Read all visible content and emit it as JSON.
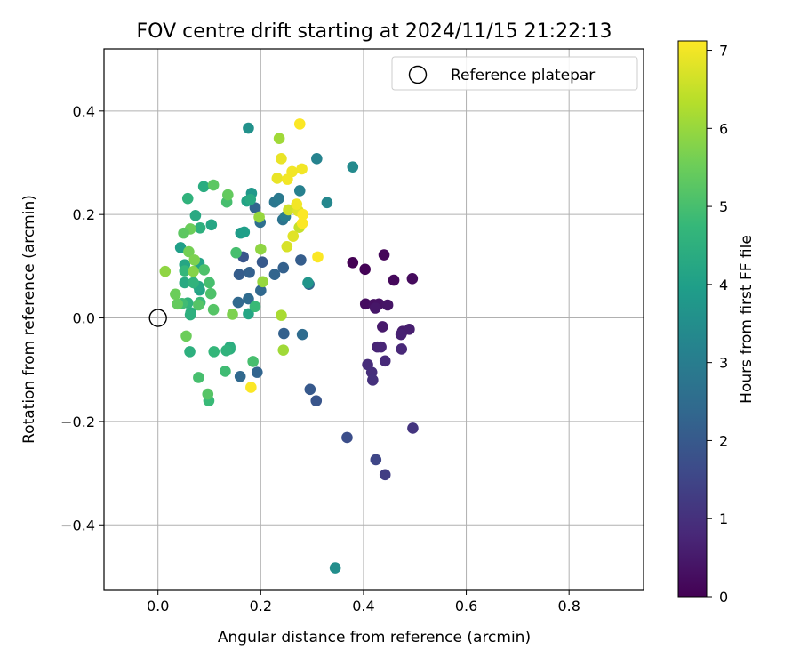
{
  "chart_data": {
    "type": "scatter",
    "title": "FOV centre drift starting at 2024/11/15 21:22:13",
    "xlabel": "Angular distance from reference (arcmin)",
    "ylabel": "Rotation from reference (arcmin)",
    "xlim": [
      -0.105,
      0.945
    ],
    "ylim": [
      -0.525,
      0.52
    ],
    "xticks": [
      0.0,
      0.2,
      0.4,
      0.6,
      0.8
    ],
    "xtick_labels": [
      "0.0",
      "0.2",
      "0.4",
      "0.6",
      "0.8"
    ],
    "yticks": [
      -0.4,
      -0.2,
      0.0,
      0.2,
      0.4
    ],
    "ytick_labels": [
      "−0.4",
      "−0.2",
      "0.0",
      "0.2",
      "0.4"
    ],
    "grid": true,
    "legend": {
      "placement": "top-right",
      "label": "Reference platepar"
    },
    "reference": {
      "x": 0.0,
      "y": 0.0
    },
    "colorbar": {
      "label": "Hours from first FF file",
      "range": [
        0,
        7.12
      ],
      "ticks": [
        0,
        1,
        2,
        3,
        4,
        5,
        6,
        7
      ],
      "tick_labels": [
        "0",
        "1",
        "2",
        "3",
        "4",
        "5",
        "6",
        "7"
      ],
      "colormap": [
        "#440154",
        "#482878",
        "#3e4989",
        "#31688e",
        "#26828e",
        "#1f9e89",
        "#35b779",
        "#6ece58",
        "#b5de2b",
        "#fde725"
      ]
    },
    "points": [
      {
        "x": 0.379,
        "y": 0.107,
        "h": 0.0
      },
      {
        "x": 0.403,
        "y": 0.094,
        "h": 0.05
      },
      {
        "x": 0.44,
        "y": 0.122,
        "h": 0.1
      },
      {
        "x": 0.459,
        "y": 0.073,
        "h": 0.15
      },
      {
        "x": 0.495,
        "y": 0.076,
        "h": 0.2
      },
      {
        "x": 0.404,
        "y": 0.027,
        "h": 0.25
      },
      {
        "x": 0.42,
        "y": 0.026,
        "h": 0.3
      },
      {
        "x": 0.43,
        "y": 0.027,
        "h": 0.35
      },
      {
        "x": 0.447,
        "y": 0.025,
        "h": 0.4
      },
      {
        "x": 0.423,
        "y": 0.019,
        "h": 0.45
      },
      {
        "x": 0.437,
        "y": -0.017,
        "h": 0.5
      },
      {
        "x": 0.476,
        "y": -0.026,
        "h": 0.55
      },
      {
        "x": 0.489,
        "y": -0.022,
        "h": 0.6
      },
      {
        "x": 0.473,
        "y": -0.032,
        "h": 0.65
      },
      {
        "x": 0.427,
        "y": -0.056,
        "h": 0.7
      },
      {
        "x": 0.434,
        "y": -0.056,
        "h": 0.75
      },
      {
        "x": 0.474,
        "y": -0.06,
        "h": 0.8
      },
      {
        "x": 0.442,
        "y": -0.083,
        "h": 0.85
      },
      {
        "x": 0.408,
        "y": -0.09,
        "h": 0.9
      },
      {
        "x": 0.416,
        "y": -0.105,
        "h": 0.95
      },
      {
        "x": 0.418,
        "y": -0.12,
        "h": 1.0
      },
      {
        "x": 0.496,
        "y": -0.213,
        "h": 1.1
      },
      {
        "x": 0.442,
        "y": -0.303,
        "h": 1.3
      },
      {
        "x": 0.424,
        "y": -0.274,
        "h": 1.5
      },
      {
        "x": 0.368,
        "y": -0.231,
        "h": 1.7
      },
      {
        "x": 0.308,
        "y": -0.16,
        "h": 1.9
      },
      {
        "x": 0.296,
        "y": -0.138,
        "h": 2.0
      },
      {
        "x": 0.278,
        "y": 0.112,
        "h": 2.1
      },
      {
        "x": 0.244,
        "y": 0.097,
        "h": 2.2
      },
      {
        "x": 0.227,
        "y": 0.084,
        "h": 2.3
      },
      {
        "x": 0.294,
        "y": 0.065,
        "h": 2.4
      },
      {
        "x": 0.245,
        "y": -0.03,
        "h": 2.2
      },
      {
        "x": 0.281,
        "y": -0.032,
        "h": 2.5
      },
      {
        "x": 0.16,
        "y": -0.113,
        "h": 2.4
      },
      {
        "x": 0.193,
        "y": -0.105,
        "h": 2.3
      },
      {
        "x": 0.203,
        "y": 0.108,
        "h": 2.0
      },
      {
        "x": 0.158,
        "y": 0.084,
        "h": 2.1
      },
      {
        "x": 0.178,
        "y": 0.088,
        "h": 2.2
      },
      {
        "x": 0.166,
        "y": 0.118,
        "h": 1.9
      },
      {
        "x": 0.189,
        "y": 0.213,
        "h": 2.3
      },
      {
        "x": 0.199,
        "y": 0.185,
        "h": 2.6
      },
      {
        "x": 0.156,
        "y": 0.03,
        "h": 2.4
      },
      {
        "x": 0.176,
        "y": 0.037,
        "h": 2.5
      },
      {
        "x": 0.2,
        "y": 0.053,
        "h": 2.4
      },
      {
        "x": 0.243,
        "y": 0.19,
        "h": 2.7
      },
      {
        "x": 0.227,
        "y": 0.224,
        "h": 2.8
      },
      {
        "x": 0.235,
        "y": 0.231,
        "h": 2.9
      },
      {
        "x": 0.248,
        "y": 0.196,
        "h": 3.0
      },
      {
        "x": 0.276,
        "y": 0.246,
        "h": 3.1
      },
      {
        "x": 0.309,
        "y": 0.308,
        "h": 3.2
      },
      {
        "x": 0.329,
        "y": 0.223,
        "h": 3.3
      },
      {
        "x": 0.379,
        "y": 0.292,
        "h": 3.4
      },
      {
        "x": 0.176,
        "y": 0.367,
        "h": 3.6
      },
      {
        "x": 0.345,
        "y": -0.483,
        "h": 3.5
      },
      {
        "x": 0.292,
        "y": 0.068,
        "h": 3.7
      },
      {
        "x": 0.182,
        "y": 0.241,
        "h": 3.8
      },
      {
        "x": 0.161,
        "y": 0.164,
        "h": 3.9
      },
      {
        "x": 0.168,
        "y": 0.166,
        "h": 4.0
      },
      {
        "x": 0.173,
        "y": 0.226,
        "h": 4.1
      },
      {
        "x": 0.176,
        "y": 0.008,
        "h": 4.2
      },
      {
        "x": 0.18,
        "y": 0.229,
        "h": 4.3
      },
      {
        "x": 0.14,
        "y": -0.056,
        "h": 4.4
      },
      {
        "x": 0.14,
        "y": -0.06,
        "h": 4.5
      },
      {
        "x": 0.133,
        "y": -0.063,
        "h": 4.6
      },
      {
        "x": 0.109,
        "y": -0.065,
        "h": 4.7
      },
      {
        "x": 0.099,
        "y": -0.16,
        "h": 4.8
      },
      {
        "x": 0.131,
        "y": -0.103,
        "h": 4.9
      },
      {
        "x": 0.185,
        "y": -0.084,
        "h": 5.0
      },
      {
        "x": 0.104,
        "y": 0.18,
        "h": 4.2
      },
      {
        "x": 0.082,
        "y": 0.174,
        "h": 4.5
      },
      {
        "x": 0.058,
        "y": 0.231,
        "h": 4.6
      },
      {
        "x": 0.089,
        "y": 0.254,
        "h": 4.4
      },
      {
        "x": 0.073,
        "y": 0.198,
        "h": 4.3
      },
      {
        "x": 0.08,
        "y": 0.106,
        "h": 4.1
      },
      {
        "x": 0.052,
        "y": 0.103,
        "h": 4.2
      },
      {
        "x": 0.044,
        "y": 0.136,
        "h": 4.0
      },
      {
        "x": 0.081,
        "y": 0.054,
        "h": 4.1
      },
      {
        "x": 0.079,
        "y": 0.061,
        "h": 4.2
      },
      {
        "x": 0.052,
        "y": 0.068,
        "h": 4.3
      },
      {
        "x": 0.064,
        "y": 0.01,
        "h": 4.4
      },
      {
        "x": 0.069,
        "y": 0.068,
        "h": 4.6
      },
      {
        "x": 0.052,
        "y": 0.091,
        "h": 4.7
      },
      {
        "x": 0.058,
        "y": 0.029,
        "h": 4.6
      },
      {
        "x": 0.063,
        "y": 0.006,
        "h": 4.5
      },
      {
        "x": 0.082,
        "y": 0.03,
        "h": 4.8
      },
      {
        "x": 0.047,
        "y": 0.028,
        "h": 4.9
      },
      {
        "x": 0.062,
        "y": -0.065,
        "h": 4.5
      },
      {
        "x": 0.079,
        "y": -0.115,
        "h": 5.0
      },
      {
        "x": 0.097,
        "y": -0.147,
        "h": 5.2
      },
      {
        "x": 0.055,
        "y": -0.035,
        "h": 5.5
      },
      {
        "x": 0.079,
        "y": 0.025,
        "h": 5.2
      },
      {
        "x": 0.09,
        "y": 0.093,
        "h": 5.1
      },
      {
        "x": 0.1,
        "y": 0.068,
        "h": 5.0
      },
      {
        "x": 0.103,
        "y": 0.047,
        "h": 5.1
      },
      {
        "x": 0.108,
        "y": 0.016,
        "h": 5.2
      },
      {
        "x": 0.134,
        "y": 0.224,
        "h": 5.0
      },
      {
        "x": 0.108,
        "y": 0.257,
        "h": 5.3
      },
      {
        "x": 0.136,
        "y": 0.238,
        "h": 5.4
      },
      {
        "x": 0.063,
        "y": 0.172,
        "h": 5.5
      },
      {
        "x": 0.06,
        "y": 0.128,
        "h": 5.6
      },
      {
        "x": 0.071,
        "y": 0.112,
        "h": 5.7
      },
      {
        "x": 0.05,
        "y": 0.164,
        "h": 5.3
      },
      {
        "x": 0.038,
        "y": 0.027,
        "h": 5.4
      },
      {
        "x": 0.034,
        "y": 0.046,
        "h": 5.5
      },
      {
        "x": 0.152,
        "y": 0.126,
        "h": 5.0
      },
      {
        "x": 0.145,
        "y": 0.007,
        "h": 5.7
      },
      {
        "x": 0.189,
        "y": 0.022,
        "h": 4.8
      },
      {
        "x": 0.2,
        "y": 0.133,
        "h": 5.9
      },
      {
        "x": 0.197,
        "y": 0.195,
        "h": 6.0
      },
      {
        "x": 0.204,
        "y": 0.07,
        "h": 6.0
      },
      {
        "x": 0.244,
        "y": -0.062,
        "h": 6.1
      },
      {
        "x": 0.24,
        "y": 0.005,
        "h": 6.2
      },
      {
        "x": 0.236,
        "y": 0.347,
        "h": 6.1
      },
      {
        "x": 0.069,
        "y": 0.09,
        "h": 5.8
      },
      {
        "x": 0.275,
        "y": 0.175,
        "h": 6.5
      },
      {
        "x": 0.254,
        "y": 0.209,
        "h": 6.6
      },
      {
        "x": 0.251,
        "y": 0.138,
        "h": 6.7
      },
      {
        "x": 0.263,
        "y": 0.158,
        "h": 6.8
      },
      {
        "x": 0.273,
        "y": 0.207,
        "h": 6.8
      },
      {
        "x": 0.232,
        "y": 0.27,
        "h": 6.9
      },
      {
        "x": 0.24,
        "y": 0.308,
        "h": 6.9
      },
      {
        "x": 0.252,
        "y": 0.268,
        "h": 7.0
      },
      {
        "x": 0.261,
        "y": 0.283,
        "h": 7.0
      },
      {
        "x": 0.27,
        "y": 0.22,
        "h": 7.0
      },
      {
        "x": 0.276,
        "y": 0.375,
        "h": 7.1
      },
      {
        "x": 0.28,
        "y": 0.288,
        "h": 7.0
      },
      {
        "x": 0.282,
        "y": 0.2,
        "h": 7.1
      },
      {
        "x": 0.281,
        "y": 0.183,
        "h": 7.1
      },
      {
        "x": 0.311,
        "y": 0.118,
        "h": 7.1
      },
      {
        "x": 0.181,
        "y": -0.134,
        "h": 7.1
      },
      {
        "x": 0.014,
        "y": 0.09,
        "h": 5.9
      }
    ]
  }
}
